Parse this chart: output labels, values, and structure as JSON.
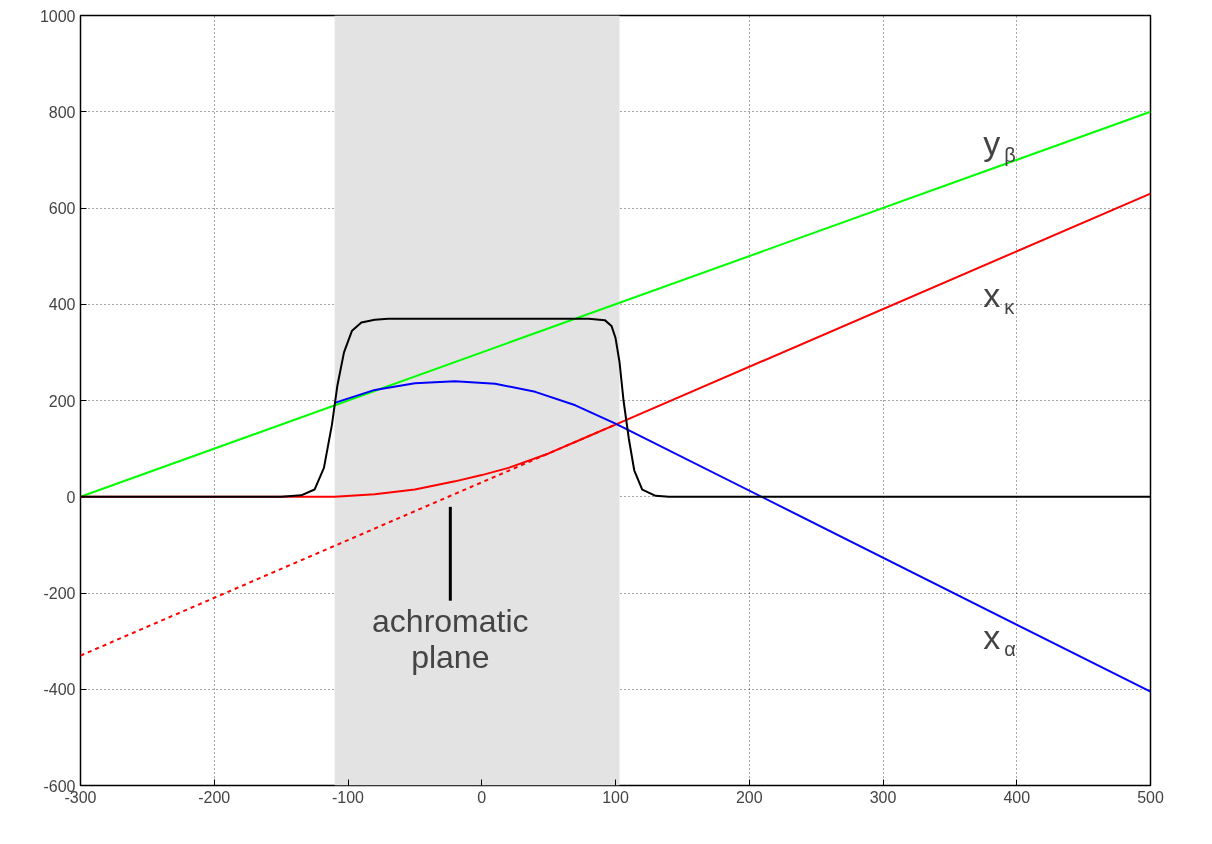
{
  "chart_data": {
    "type": "line",
    "xlim": [
      -300,
      500
    ],
    "ylim": [
      -600,
      1000
    ],
    "xticks": [
      -300,
      -200,
      -100,
      0,
      100,
      200,
      300,
      400,
      500
    ],
    "yticks": [
      -600,
      -400,
      -200,
      0,
      200,
      400,
      600,
      800,
      1000
    ],
    "grid": true,
    "line_style": "solid",
    "bands": [
      {
        "axis": "x",
        "from": -110,
        "to": 103,
        "color": "#e3e3e3"
      }
    ],
    "annotations": [
      "achromatic plane"
    ],
    "series": [
      {
        "name": "y$_{β}$",
        "color": "#00ff00",
        "x": [
          -300,
          500
        ],
        "values": [
          0,
          800
        ]
      },
      {
        "name": "x$_{κ}$",
        "color": "#ff0000",
        "x": [
          -300,
          -110,
          -80,
          -50,
          -20,
          0,
          20,
          50,
          75,
          100,
          500
        ],
        "values": [
          0,
          0,
          5,
          15,
          32,
          45,
          60,
          90,
          120,
          150,
          630
        ]
      },
      {
        "color": "#ff0000",
        "line_style": "dashed",
        "x": [
          -300,
          100
        ],
        "values": [
          -330,
          150
        ]
      },
      {
        "name": "x$_{α}$",
        "color": "#0000ff",
        "x": [
          -110,
          -80,
          -50,
          -20,
          10,
          40,
          70,
          100,
          500
        ],
        "values": [
          195,
          222,
          236,
          240,
          235,
          218,
          190,
          152,
          -405
        ]
      },
      {
        "color": "#000000",
        "x": [
          -300,
          -150,
          -135,
          -125,
          -118,
          -112,
          -108,
          -103,
          -97,
          -90,
          -80,
          -70,
          80,
          92,
          97,
          100,
          103,
          106,
          110,
          114,
          120,
          130,
          140,
          500
        ],
        "values": [
          0,
          0,
          3,
          15,
          60,
          150,
          230,
          300,
          345,
          362,
          368,
          370,
          370,
          367,
          355,
          330,
          280,
          200,
          120,
          55,
          15,
          2,
          0,
          0
        ]
      }
    ]
  }
}
